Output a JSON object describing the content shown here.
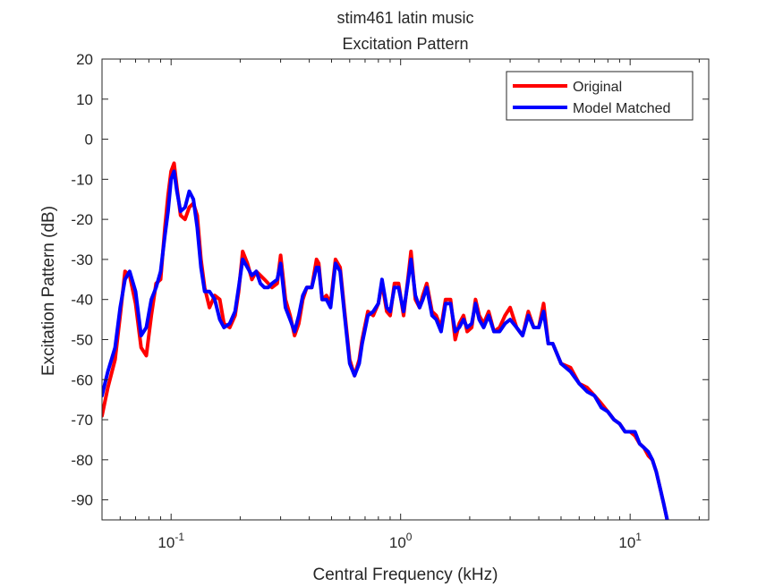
{
  "chart_data": {
    "type": "line",
    "title": "stim461 latin music",
    "subtitle": "Excitation Pattern",
    "xlabel": "Central Frequency (kHz)",
    "ylabel": "Excitation Pattern (dB)",
    "x_scale": "log",
    "xlim": [
      0.05,
      22
    ],
    "ylim": [
      -95,
      20
    ],
    "yticks": [
      20,
      10,
      0,
      -10,
      -20,
      -30,
      -40,
      -50,
      -60,
      -70,
      -80,
      -90
    ],
    "xticks": [
      {
        "value": 0.1,
        "base": "10",
        "exp": "-1"
      },
      {
        "value": 1,
        "base": "10",
        "exp": "0"
      },
      {
        "value": 10,
        "base": "10",
        "exp": "1"
      }
    ],
    "grid": false,
    "legend_position": "top-right",
    "series": [
      {
        "name": "Original",
        "color": "#ff0000",
        "x": [
          0.05,
          0.053,
          0.057,
          0.06,
          0.063,
          0.066,
          0.07,
          0.074,
          0.078,
          0.082,
          0.086,
          0.09,
          0.094,
          0.097,
          0.1,
          0.103,
          0.106,
          0.11,
          0.115,
          0.12,
          0.125,
          0.13,
          0.135,
          0.14,
          0.147,
          0.155,
          0.163,
          0.17,
          0.18,
          0.19,
          0.197,
          0.205,
          0.215,
          0.225,
          0.235,
          0.245,
          0.255,
          0.265,
          0.275,
          0.29,
          0.3,
          0.315,
          0.33,
          0.345,
          0.36,
          0.375,
          0.39,
          0.41,
          0.43,
          0.44,
          0.455,
          0.475,
          0.495,
          0.52,
          0.545,
          0.57,
          0.6,
          0.63,
          0.66,
          0.68,
          0.72,
          0.76,
          0.8,
          0.83,
          0.87,
          0.9,
          0.94,
          0.98,
          1.03,
          1.08,
          1.11,
          1.16,
          1.21,
          1.25,
          1.3,
          1.37,
          1.43,
          1.5,
          1.57,
          1.65,
          1.73,
          1.8,
          1.88,
          1.95,
          2.04,
          2.12,
          2.2,
          2.3,
          2.42,
          2.55,
          2.7,
          2.85,
          3.0,
          3.2,
          3.4,
          3.6,
          3.8,
          4.0,
          4.2,
          4.4,
          4.6,
          5.0,
          5.5,
          6.0,
          6.5,
          7.0,
          7.5,
          8.0,
          8.5,
          9.0,
          9.5,
          10.0,
          10.5,
          11.0,
          11.5,
          12.0,
          12.5,
          13.0,
          13.5,
          14.0,
          14.5
        ],
        "y": [
          -69,
          -62,
          -55,
          -44,
          -33,
          -34,
          -41,
          -52,
          -54,
          -44,
          -36,
          -35,
          -22,
          -14,
          -8,
          -6,
          -12,
          -19,
          -20,
          -17,
          -16,
          -19,
          -30,
          -37,
          -42,
          -39,
          -40,
          -46,
          -47,
          -44,
          -38,
          -28,
          -31,
          -35,
          -33,
          -34,
          -35,
          -36,
          -37,
          -36,
          -29,
          -40,
          -44,
          -49,
          -46,
          -40,
          -37,
          -37,
          -30,
          -31,
          -40,
          -39,
          -41,
          -30,
          -32,
          -43,
          -55,
          -59,
          -55,
          -50,
          -43,
          -44,
          -41,
          -36,
          -43,
          -44,
          -36,
          -36,
          -44,
          -34,
          -28,
          -40,
          -42,
          -39,
          -36,
          -43,
          -44,
          -47,
          -40,
          -40,
          -50,
          -46,
          -44,
          -48,
          -47,
          -40,
          -44,
          -46,
          -43,
          -48,
          -47,
          -44,
          -42,
          -47,
          -49,
          -43,
          -47,
          -47,
          -41,
          -51,
          -51,
          -56,
          -57,
          -61,
          -62,
          -64,
          -66,
          -68,
          -70,
          -71,
          -73,
          -73,
          -74,
          -76,
          -77,
          -79,
          -80,
          -83,
          -87,
          -91,
          -95
        ],
        "line_width": 4
      },
      {
        "name": "Model Matched",
        "color": "#0000ff",
        "x": [
          0.05,
          0.053,
          0.057,
          0.06,
          0.063,
          0.066,
          0.07,
          0.074,
          0.078,
          0.082,
          0.086,
          0.09,
          0.094,
          0.097,
          0.1,
          0.103,
          0.106,
          0.11,
          0.115,
          0.12,
          0.125,
          0.13,
          0.135,
          0.14,
          0.147,
          0.155,
          0.163,
          0.17,
          0.18,
          0.19,
          0.197,
          0.205,
          0.215,
          0.225,
          0.235,
          0.245,
          0.255,
          0.265,
          0.275,
          0.29,
          0.3,
          0.315,
          0.33,
          0.345,
          0.36,
          0.375,
          0.39,
          0.41,
          0.43,
          0.44,
          0.455,
          0.475,
          0.495,
          0.52,
          0.545,
          0.57,
          0.6,
          0.63,
          0.66,
          0.68,
          0.72,
          0.76,
          0.8,
          0.83,
          0.87,
          0.9,
          0.94,
          0.98,
          1.03,
          1.08,
          1.11,
          1.16,
          1.21,
          1.25,
          1.3,
          1.37,
          1.43,
          1.5,
          1.57,
          1.65,
          1.73,
          1.8,
          1.88,
          1.95,
          2.04,
          2.12,
          2.2,
          2.3,
          2.42,
          2.55,
          2.7,
          2.85,
          3.0,
          3.2,
          3.4,
          3.6,
          3.8,
          4.0,
          4.2,
          4.4,
          4.6,
          5.0,
          5.5,
          6.0,
          6.5,
          7.0,
          7.5,
          8.0,
          8.5,
          9.0,
          9.5,
          10.0,
          10.5,
          11.0,
          11.5,
          12.0,
          12.5,
          13.0,
          13.5,
          14.0,
          14.5
        ],
        "y": [
          -64,
          -58,
          -52,
          -42,
          -35,
          -33,
          -38,
          -49,
          -47,
          -40,
          -37,
          -33,
          -24,
          -18,
          -10,
          -8,
          -13,
          -18,
          -17,
          -13,
          -15,
          -22,
          -32,
          -38,
          -38,
          -40,
          -45,
          -47,
          -46,
          -43,
          -37,
          -30,
          -32,
          -34,
          -33,
          -36,
          -37,
          -37,
          -36,
          -35,
          -31,
          -42,
          -45,
          -48,
          -44,
          -39,
          -37,
          -37,
          -32,
          -32,
          -40,
          -40,
          -42,
          -31,
          -33,
          -44,
          -56,
          -59,
          -56,
          -51,
          -44,
          -43,
          -41,
          -35,
          -42,
          -43,
          -37,
          -37,
          -43,
          -35,
          -30,
          -39,
          -42,
          -40,
          -37,
          -44,
          -45,
          -48,
          -41,
          -41,
          -48,
          -47,
          -45,
          -47,
          -46,
          -41,
          -45,
          -47,
          -44,
          -48,
          -48,
          -46,
          -45,
          -47,
          -49,
          -44,
          -47,
          -47,
          -43,
          -51,
          -51,
          -56,
          -58,
          -61,
          -63,
          -64,
          -67,
          -68,
          -70,
          -71,
          -73,
          -73,
          -73,
          -76,
          -77,
          -78,
          -80,
          -83,
          -87,
          -91,
          -95
        ],
        "line_width": 4
      }
    ]
  }
}
